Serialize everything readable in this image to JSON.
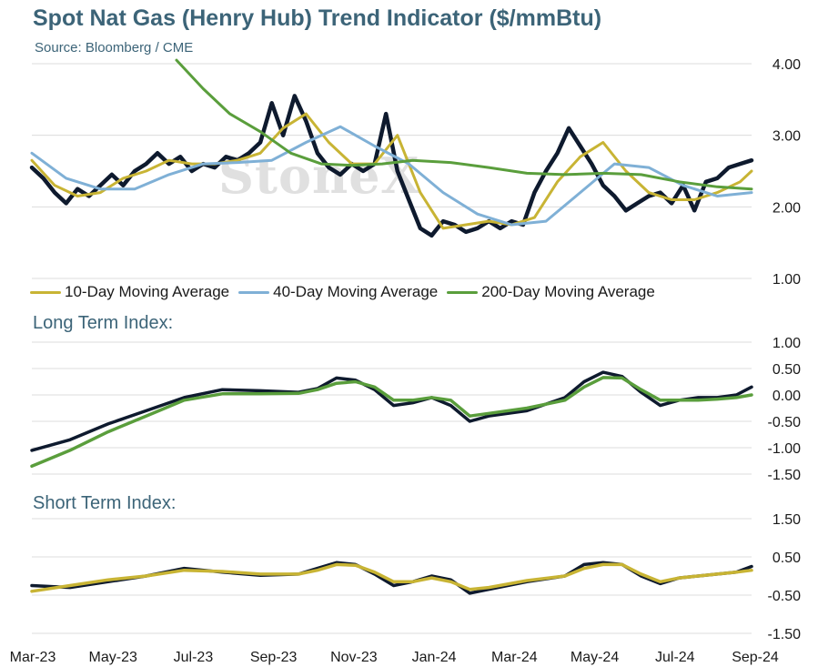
{
  "title": "Spot Nat Gas (Henry Hub) Trend Indicator ($/mmBtu)",
  "source": "Source: Bloomberg / CME",
  "watermark": "StoneX",
  "colors": {
    "price": "#0e1a2e",
    "ma10": "#c8b434",
    "ma40": "#7fb0d6",
    "ma200": "#5a9e3c",
    "grid": "#dcdcdc",
    "title": "#3c6478"
  },
  "legend": [
    {
      "label": "10-Day Moving Average",
      "color": "#c8b434"
    },
    {
      "label": "40-Day Moving Average",
      "color": "#7fb0d6"
    },
    {
      "label": "200-Day Moving Average",
      "color": "#5a9e3c"
    }
  ],
  "x_tick_labels": [
    "Mar-23",
    "May-23",
    "Jul-23",
    "Sep-23",
    "Nov-23",
    "Jan-24",
    "Mar-24",
    "May-24",
    "Jul-24",
    "Sep-24"
  ],
  "chart_data": [
    {
      "type": "line",
      "panel": "price",
      "title": "Spot Nat Gas (Henry Hub) Trend Indicator ($/mmBtu)",
      "ylim": [
        1.0,
        4.0
      ],
      "yticks": [
        "1.00",
        "2.00",
        "3.00",
        "4.00"
      ],
      "grid": true,
      "legend_position": "bottom",
      "x_range": [
        "Mar-23",
        "Sep-24"
      ],
      "series": [
        {
          "name": "",
          "color": "#0e1a2e",
          "width": 4.5,
          "x": [
            0,
            0.3,
            0.6,
            0.9,
            1.2,
            1.5,
            1.8,
            2.1,
            2.4,
            2.7,
            3.0,
            3.3,
            3.6,
            3.9,
            4.2,
            4.5,
            4.8,
            5.1,
            5.4,
            5.7,
            6.0,
            6.3,
            6.6,
            6.9,
            7.2,
            7.5,
            7.8,
            8.1,
            8.4,
            8.7,
            9.0,
            9.3,
            9.6,
            9.9,
            10.2,
            10.5,
            10.8,
            11.1,
            11.4,
            11.7,
            12.0,
            12.3,
            12.6,
            12.9,
            13.2,
            13.5,
            13.8,
            14.1,
            14.4,
            14.7,
            15.0,
            15.3,
            15.6,
            15.9,
            16.2,
            16.5,
            16.8,
            17.1,
            17.4,
            17.7,
            18.0,
            18.3,
            18.6,
            18.9
          ],
          "values": [
            2.55,
            2.4,
            2.2,
            2.05,
            2.25,
            2.15,
            2.3,
            2.45,
            2.3,
            2.5,
            2.6,
            2.75,
            2.6,
            2.7,
            2.5,
            2.6,
            2.55,
            2.7,
            2.65,
            2.75,
            2.9,
            3.45,
            3.0,
            3.55,
            3.2,
            2.75,
            2.55,
            2.45,
            2.6,
            2.5,
            2.6,
            3.3,
            2.5,
            2.1,
            1.7,
            1.6,
            1.8,
            1.75,
            1.65,
            1.7,
            1.8,
            1.7,
            1.8,
            1.75,
            2.2,
            2.5,
            2.75,
            3.1,
            2.85,
            2.6,
            2.3,
            2.15,
            1.95,
            2.05,
            2.15,
            2.2,
            2.05,
            2.3,
            1.95,
            2.35,
            2.4,
            2.55,
            2.6,
            2.65
          ]
        },
        {
          "name": "10-Day Moving Average",
          "color": "#c8b434",
          "width": 3,
          "x": [
            0,
            0.6,
            1.2,
            1.8,
            2.4,
            3.0,
            3.6,
            4.2,
            4.8,
            5.4,
            6.0,
            6.6,
            7.2,
            7.8,
            8.4,
            9.0,
            9.6,
            10.2,
            10.8,
            11.4,
            12.0,
            12.6,
            13.2,
            13.8,
            14.4,
            15.0,
            15.6,
            16.2,
            16.8,
            17.4,
            18.0,
            18.6,
            18.9
          ],
          "values": [
            2.65,
            2.3,
            2.15,
            2.2,
            2.4,
            2.5,
            2.65,
            2.6,
            2.6,
            2.65,
            2.75,
            3.1,
            3.3,
            2.9,
            2.6,
            2.6,
            3.0,
            2.2,
            1.7,
            1.75,
            1.8,
            1.75,
            1.85,
            2.35,
            2.7,
            2.9,
            2.5,
            2.2,
            2.1,
            2.1,
            2.2,
            2.35,
            2.5
          ]
        },
        {
          "name": "40-Day Moving Average",
          "color": "#7fb0d6",
          "width": 3,
          "x": [
            0,
            0.9,
            1.8,
            2.7,
            3.6,
            4.5,
            5.4,
            6.3,
            7.2,
            8.1,
            9.0,
            9.9,
            10.8,
            11.7,
            12.6,
            13.5,
            14.4,
            15.3,
            16.2,
            17.1,
            18.0,
            18.9
          ],
          "values": [
            2.75,
            2.4,
            2.25,
            2.25,
            2.45,
            2.6,
            2.62,
            2.65,
            2.9,
            3.12,
            2.85,
            2.6,
            2.2,
            1.9,
            1.75,
            1.8,
            2.2,
            2.6,
            2.55,
            2.3,
            2.15,
            2.2
          ]
        },
        {
          "name": "200-Day Moving Average",
          "color": "#5a9e3c",
          "width": 3,
          "x": [
            3.8,
            4.5,
            5.2,
            6.0,
            6.8,
            7.6,
            8.4,
            9.2,
            10.0,
            11.0,
            12.0,
            13.0,
            14.0,
            15.0,
            16.0,
            17.0,
            18.0,
            18.9
          ],
          "values": [
            4.05,
            3.65,
            3.3,
            3.05,
            2.75,
            2.6,
            2.58,
            2.6,
            2.65,
            2.62,
            2.55,
            2.47,
            2.45,
            2.47,
            2.45,
            2.35,
            2.28,
            2.25
          ]
        }
      ]
    },
    {
      "type": "line",
      "panel": "long",
      "title": "Long Term Index:",
      "ylim": [
        -1.5,
        1.0
      ],
      "yticks": [
        "-1.50",
        "-1.00",
        "-0.50",
        "0.00",
        "0.50",
        "1.00"
      ],
      "grid": true,
      "x_range": [
        "Mar-23",
        "Sep-24"
      ],
      "series": [
        {
          "name": "",
          "color": "#0e1a2e",
          "width": 3.5,
          "x": [
            0,
            1,
            2,
            3,
            4,
            5,
            6,
            7,
            7.5,
            8,
            8.5,
            9,
            9.5,
            10,
            10.5,
            11,
            11.5,
            12,
            13,
            14,
            14.5,
            15,
            15.5,
            16,
            16.5,
            17,
            17.5,
            18,
            18.5,
            18.9
          ],
          "values": [
            -1.05,
            -0.85,
            -0.55,
            -0.3,
            -0.05,
            0.1,
            0.08,
            0.05,
            0.12,
            0.32,
            0.28,
            0.1,
            -0.2,
            -0.15,
            -0.05,
            -0.2,
            -0.5,
            -0.4,
            -0.3,
            -0.05,
            0.25,
            0.43,
            0.35,
            0.05,
            -0.2,
            -0.1,
            -0.05,
            -0.05,
            0.0,
            0.15
          ]
        },
        {
          "name": "",
          "color": "#5a9e3c",
          "width": 3.5,
          "x": [
            0,
            1,
            2,
            3,
            4,
            5,
            6,
            7,
            7.5,
            8,
            8.5,
            9,
            9.5,
            10,
            10.5,
            11,
            11.5,
            12,
            13,
            14,
            14.5,
            15,
            15.5,
            16,
            16.5,
            17,
            17.5,
            18,
            18.5,
            18.9
          ],
          "values": [
            -1.35,
            -1.05,
            -0.7,
            -0.4,
            -0.1,
            0.02,
            0.02,
            0.03,
            0.1,
            0.22,
            0.25,
            0.15,
            -0.1,
            -0.1,
            -0.05,
            -0.1,
            -0.4,
            -0.35,
            -0.25,
            -0.1,
            0.15,
            0.33,
            0.32,
            0.1,
            -0.1,
            -0.1,
            -0.1,
            -0.08,
            -0.05,
            0.0
          ]
        }
      ]
    },
    {
      "type": "line",
      "panel": "short",
      "title": "Short Term Index:",
      "ylim": [
        -1.5,
        1.5
      ],
      "yticks": [
        "-1.50",
        "-0.50",
        "0.50",
        "1.50"
      ],
      "grid": true,
      "x_range": [
        "Mar-23",
        "Sep-24"
      ],
      "series": [
        {
          "name": "",
          "color": "#0e1a2e",
          "width": 3.5,
          "x": [
            0,
            1,
            2,
            3,
            4,
            5,
            6,
            7,
            7.5,
            8,
            8.5,
            9,
            9.5,
            10,
            10.5,
            11,
            11.5,
            12,
            13,
            14,
            14.5,
            15,
            15.5,
            16,
            16.5,
            17,
            17.5,
            18,
            18.5,
            18.9
          ],
          "values": [
            -0.25,
            -0.3,
            -0.15,
            0.0,
            0.2,
            0.1,
            0.02,
            0.05,
            0.2,
            0.35,
            0.3,
            0.05,
            -0.25,
            -0.15,
            0.0,
            -0.1,
            -0.45,
            -0.35,
            -0.15,
            0.0,
            0.3,
            0.35,
            0.3,
            0.0,
            -0.2,
            -0.05,
            0.0,
            0.05,
            0.1,
            0.25
          ]
        },
        {
          "name": "",
          "color": "#c8b434",
          "width": 3.5,
          "x": [
            0,
            1,
            2,
            3,
            4,
            5,
            6,
            7,
            7.5,
            8,
            8.5,
            9,
            9.5,
            10,
            10.5,
            11,
            11.5,
            12,
            13,
            14,
            14.5,
            15,
            15.5,
            16,
            16.5,
            17,
            17.5,
            18,
            18.5,
            18.9
          ],
          "values": [
            -0.4,
            -0.25,
            -0.1,
            0.0,
            0.15,
            0.12,
            0.05,
            0.05,
            0.15,
            0.3,
            0.28,
            0.1,
            -0.15,
            -0.15,
            -0.05,
            -0.15,
            -0.35,
            -0.3,
            -0.12,
            0.0,
            0.2,
            0.3,
            0.3,
            0.05,
            -0.15,
            -0.05,
            0.0,
            0.05,
            0.1,
            0.15
          ]
        }
      ]
    }
  ]
}
